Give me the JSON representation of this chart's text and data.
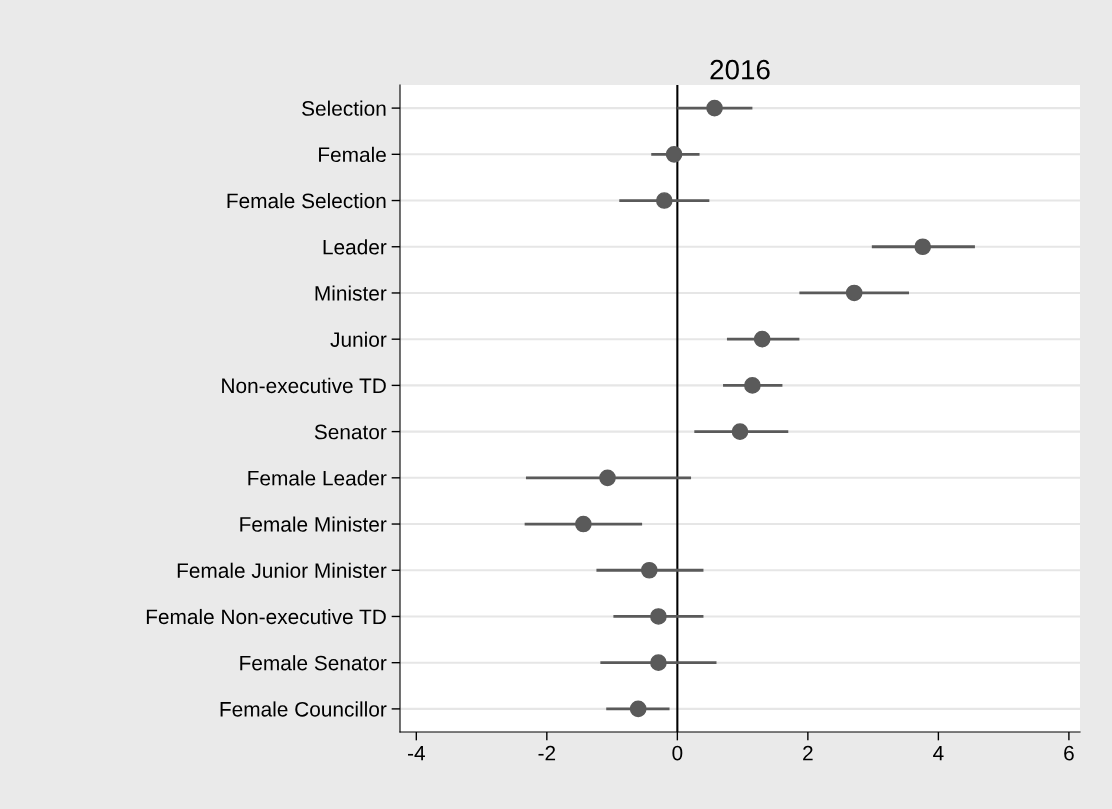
{
  "chart_data": {
    "type": "scatter",
    "orientation": "horizontal",
    "title": "2016",
    "categories": [
      "Selection",
      "Female",
      "Female Selection",
      "Leader",
      "Minister",
      "Junior",
      "Non-executive TD",
      "Senator",
      "Female Leader",
      "Female Minister",
      "Female Junior Minister",
      "Female Non-executive TD",
      "Female Senator",
      "Female Councillor"
    ],
    "values": [
      0.57,
      -0.05,
      -0.2,
      3.76,
      2.71,
      1.3,
      1.15,
      0.96,
      -1.07,
      -1.44,
      -0.43,
      -0.29,
      -0.29,
      -0.6
    ],
    "errors": [
      [
        0.0,
        1.15
      ],
      [
        -0.4,
        0.34
      ],
      [
        -0.89,
        0.49
      ],
      [
        2.98,
        4.56
      ],
      [
        1.87,
        3.55
      ],
      [
        0.76,
        1.87
      ],
      [
        0.7,
        1.61
      ],
      [
        0.26,
        1.7
      ],
      [
        -2.32,
        0.21
      ],
      [
        -2.34,
        -0.54
      ],
      [
        -1.24,
        0.4
      ],
      [
        -0.98,
        0.4
      ],
      [
        -1.18,
        0.6
      ],
      [
        -1.09,
        -0.12
      ]
    ],
    "color": "#5a5a5a",
    "xlim": [
      -4.25,
      6.17
    ],
    "xticks": [
      -4,
      -2,
      0,
      2,
      4,
      6
    ],
    "ref_lines": [
      {
        "axis": "x",
        "value": 0,
        "color": "#000000"
      }
    ],
    "grid": "y",
    "marker": "circle",
    "legend": false
  }
}
